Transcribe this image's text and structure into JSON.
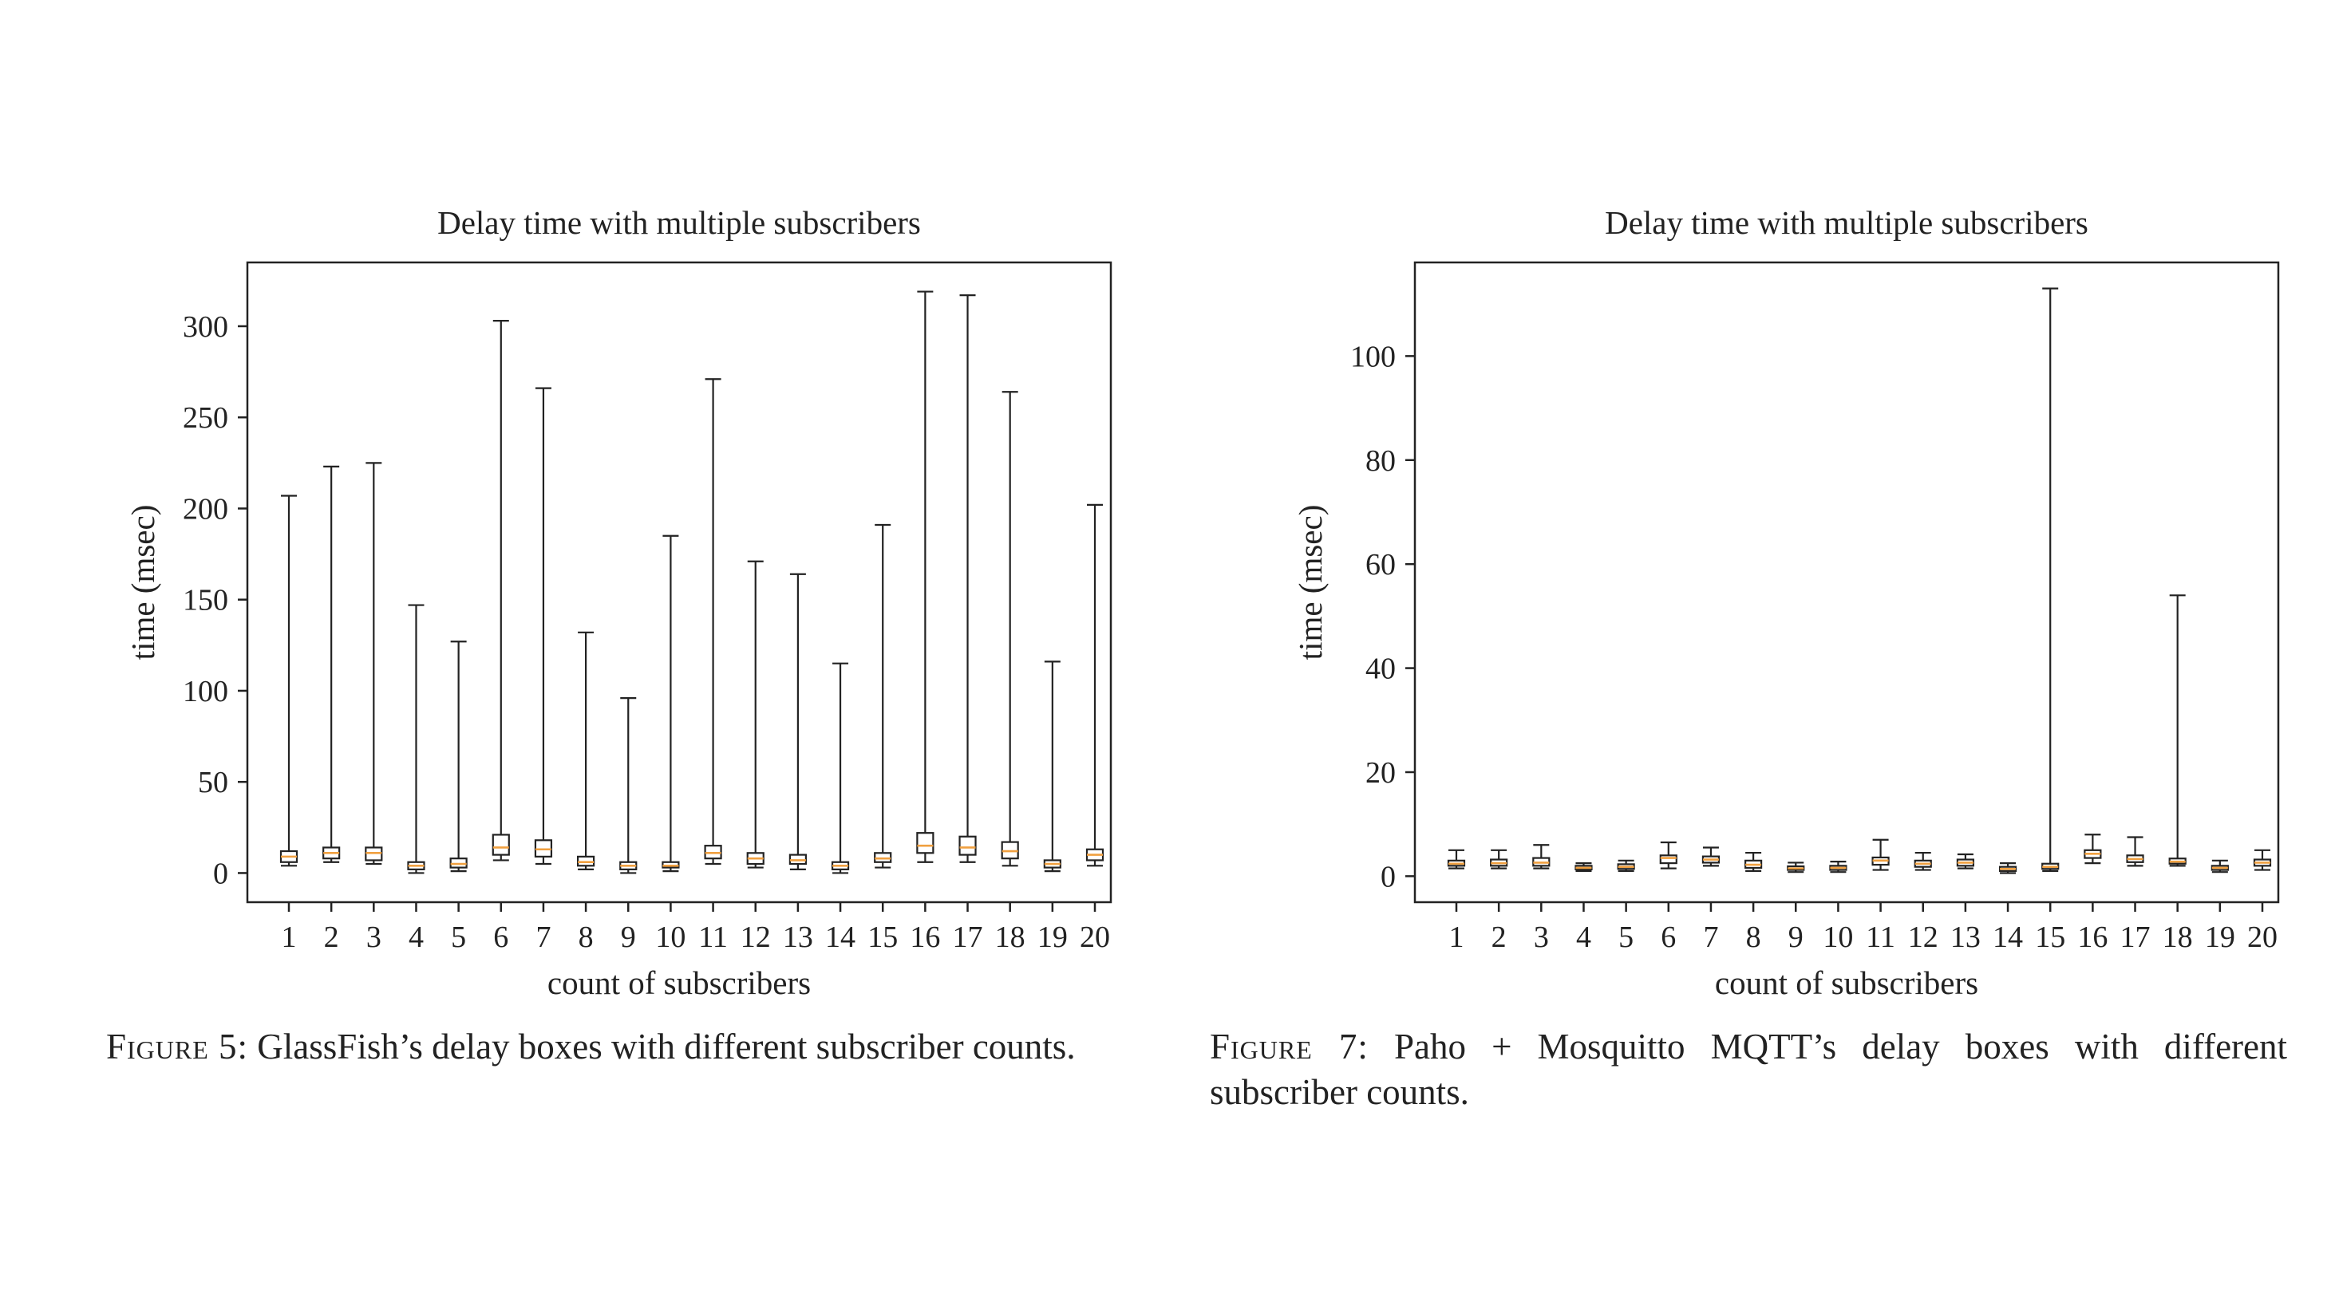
{
  "figures": [
    {
      "caption": {
        "label": "Figure 5:",
        "text": "GlassFish’s delay boxes with different subscriber counts."
      }
    },
    {
      "caption": {
        "label": "Figure 7:",
        "text": "Paho + Mosquitto MQTT’s delay boxes with different subscriber counts."
      }
    }
  ],
  "chart_data": [
    {
      "type": "box",
      "title": "Delay time with multiple subscribers",
      "xlabel": "count of subscribers",
      "ylabel": "time (msec)",
      "ylim": [
        -16,
        335
      ],
      "yticks": [
        0,
        50,
        100,
        150,
        200,
        250,
        300
      ],
      "categories": [
        "1",
        "2",
        "3",
        "4",
        "5",
        "6",
        "7",
        "8",
        "9",
        "10",
        "11",
        "12",
        "13",
        "14",
        "15",
        "16",
        "17",
        "18",
        "19",
        "20"
      ],
      "box_color": "#222222",
      "median_color": "#f0a040",
      "boxes": [
        {
          "min": 4,
          "q1": 6,
          "median": 9,
          "q3": 12,
          "max": 207
        },
        {
          "min": 6,
          "q1": 8,
          "median": 11,
          "q3": 14,
          "max": 223
        },
        {
          "min": 5,
          "q1": 7,
          "median": 11,
          "q3": 14,
          "max": 225
        },
        {
          "min": 0,
          "q1": 2,
          "median": 4,
          "q3": 6,
          "max": 147
        },
        {
          "min": 1,
          "q1": 3,
          "median": 5,
          "q3": 8,
          "max": 127
        },
        {
          "min": 7,
          "q1": 10,
          "median": 14,
          "q3": 21,
          "max": 303
        },
        {
          "min": 5,
          "q1": 9,
          "median": 13,
          "q3": 18,
          "max": 266
        },
        {
          "min": 2,
          "q1": 4,
          "median": 6,
          "q3": 9,
          "max": 132
        },
        {
          "min": 0,
          "q1": 2,
          "median": 4,
          "q3": 6,
          "max": 96
        },
        {
          "min": 1,
          "q1": 3,
          "median": 4,
          "q3": 6,
          "max": 185
        },
        {
          "min": 5,
          "q1": 8,
          "median": 11,
          "q3": 15,
          "max": 271
        },
        {
          "min": 3,
          "q1": 5,
          "median": 8,
          "q3": 11,
          "max": 171
        },
        {
          "min": 2,
          "q1": 5,
          "median": 7,
          "q3": 10,
          "max": 164
        },
        {
          "min": 0,
          "q1": 2,
          "median": 4,
          "q3": 6,
          "max": 115
        },
        {
          "min": 3,
          "q1": 6,
          "median": 8,
          "q3": 11,
          "max": 191
        },
        {
          "min": 6,
          "q1": 11,
          "median": 15,
          "q3": 22,
          "max": 319
        },
        {
          "min": 6,
          "q1": 10,
          "median": 14,
          "q3": 20,
          "max": 317
        },
        {
          "min": 4,
          "q1": 8,
          "median": 12,
          "q3": 17,
          "max": 264
        },
        {
          "min": 1,
          "q1": 3,
          "median": 5,
          "q3": 7,
          "max": 116
        },
        {
          "min": 4,
          "q1": 7,
          "median": 10,
          "q3": 13,
          "max": 202
        }
      ]
    },
    {
      "type": "box",
      "title": "Delay time with multiple subscribers",
      "xlabel": "count of subscribers",
      "ylabel": "time (msec)",
      "ylim": [
        -5,
        118
      ],
      "yticks": [
        0,
        20,
        40,
        60,
        80,
        100
      ],
      "categories": [
        "1",
        "2",
        "3",
        "4",
        "5",
        "6",
        "7",
        "8",
        "9",
        "10",
        "11",
        "12",
        "13",
        "14",
        "15",
        "16",
        "17",
        "18",
        "19",
        "20"
      ],
      "box_color": "#222222",
      "median_color": "#f0a040",
      "boxes": [
        {
          "min": 1.5,
          "q1": 2,
          "median": 2.4,
          "q3": 3,
          "max": 5
        },
        {
          "min": 1.5,
          "q1": 2,
          "median": 2.5,
          "q3": 3.2,
          "max": 5
        },
        {
          "min": 1.5,
          "q1": 2,
          "median": 2.6,
          "q3": 3.5,
          "max": 6
        },
        {
          "min": 1,
          "q1": 1.3,
          "median": 1.6,
          "q3": 2,
          "max": 2.5
        },
        {
          "min": 1,
          "q1": 1.4,
          "median": 1.8,
          "q3": 2.3,
          "max": 3
        },
        {
          "min": 1.5,
          "q1": 2.5,
          "median": 3.5,
          "q3": 4,
          "max": 6.5
        },
        {
          "min": 2,
          "q1": 2.6,
          "median": 3.2,
          "q3": 3.8,
          "max": 5.5
        },
        {
          "min": 1,
          "q1": 1.6,
          "median": 2.2,
          "q3": 3,
          "max": 4.5
        },
        {
          "min": 0.8,
          "q1": 1.2,
          "median": 1.5,
          "q3": 1.9,
          "max": 2.6
        },
        {
          "min": 0.8,
          "q1": 1.2,
          "median": 1.6,
          "q3": 2,
          "max": 2.8
        },
        {
          "min": 1.2,
          "q1": 2.2,
          "median": 3,
          "q3": 3.6,
          "max": 7
        },
        {
          "min": 1.2,
          "q1": 1.8,
          "median": 2.4,
          "q3": 3,
          "max": 4.5
        },
        {
          "min": 1.5,
          "q1": 2,
          "median": 2.6,
          "q3": 3.2,
          "max": 4.2
        },
        {
          "min": 0.6,
          "q1": 1,
          "median": 1.4,
          "q3": 1.8,
          "max": 2.5
        },
        {
          "min": 1,
          "q1": 1.4,
          "median": 1.8,
          "q3": 2.4,
          "max": 113
        },
        {
          "min": 2.5,
          "q1": 3.5,
          "median": 4.3,
          "q3": 5,
          "max": 8
        },
        {
          "min": 2,
          "q1": 2.7,
          "median": 3.3,
          "q3": 4,
          "max": 7.5
        },
        {
          "min": 2,
          "q1": 2.4,
          "median": 2.8,
          "q3": 3.4,
          "max": 54
        },
        {
          "min": 0.8,
          "q1": 1.2,
          "median": 1.6,
          "q3": 2,
          "max": 3
        },
        {
          "min": 1.2,
          "q1": 2,
          "median": 2.6,
          "q3": 3.2,
          "max": 5
        }
      ]
    }
  ]
}
